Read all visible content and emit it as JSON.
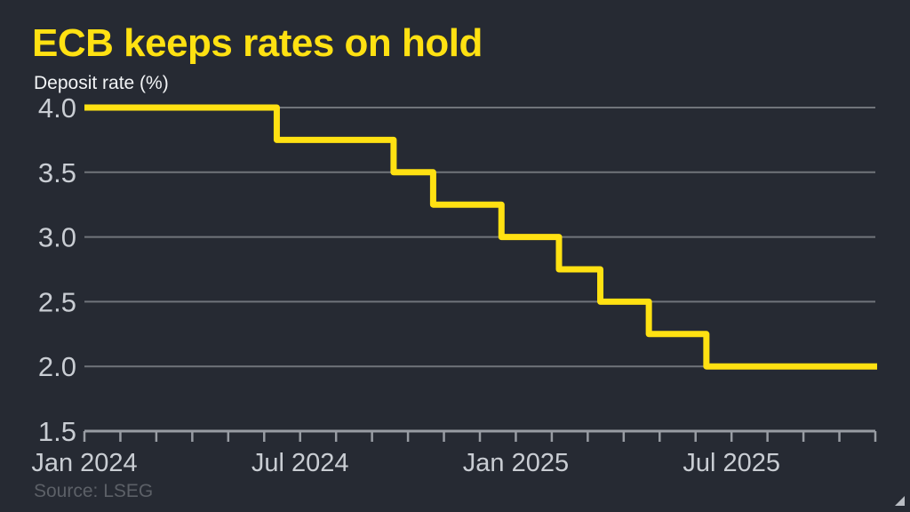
{
  "header": {
    "title": "ECB keeps rates on hold",
    "subtitle": "Deposit rate (%)"
  },
  "footer": {
    "source": "Source: LSEG"
  },
  "colors": {
    "background": "#262a33",
    "accent_yellow": "#ffe112",
    "grid": "#70747b",
    "axis": "#989ca3",
    "tick_label": "#c9cdd3",
    "subtitle_text": "#f2f4f6",
    "source_text": "#5c6067",
    "resize_handle": "#b9bdc3"
  },
  "chart_data": {
    "type": "line",
    "line_style": "step-after",
    "title": "ECB keeps rates on hold",
    "ylabel": "Deposit rate (%)",
    "legend": "none",
    "grid": "horizontal",
    "ylim": [
      1.5,
      4.0
    ],
    "y_ticks": [
      {
        "value": 4.0,
        "label": "4.0"
      },
      {
        "value": 3.5,
        "label": "3.5"
      },
      {
        "value": 3.0,
        "label": "3.0"
      },
      {
        "value": 2.5,
        "label": "2.5"
      },
      {
        "value": 2.0,
        "label": "2.0"
      },
      {
        "value": 1.5,
        "label": "1.5"
      }
    ],
    "x_axis": {
      "span_months": 22,
      "minor_tick_every_months": 1,
      "tick_labels": [
        {
          "label": "Jan 2024",
          "month": 0
        },
        {
          "label": "Jul 2024",
          "month": 6
        },
        {
          "label": "Jan 2025",
          "month": 12
        },
        {
          "label": "Jul 2025",
          "month": 18
        }
      ]
    },
    "series": [
      {
        "name": "ECB deposit rate (%)",
        "color": "#ffe112",
        "steps": [
          {
            "rate": 4.0,
            "from": "Jan 2024",
            "to": "Jun 2024",
            "from_month": 0.0,
            "to_month": 5.35
          },
          {
            "rate": 3.75,
            "from": "Jun 2024",
            "to": "Sep 2024",
            "from_month": 5.35,
            "to_month": 8.6
          },
          {
            "rate": 3.5,
            "from": "Sep 2024",
            "to": "Oct 2024",
            "from_month": 8.6,
            "to_month": 9.7
          },
          {
            "rate": 3.25,
            "from": "Oct 2024",
            "to": "Dec 2024",
            "from_month": 9.7,
            "to_month": 11.6
          },
          {
            "rate": 3.0,
            "from": "Dec 2024",
            "to": "Feb 2025",
            "from_month": 11.6,
            "to_month": 13.2
          },
          {
            "rate": 2.75,
            "from": "Feb 2025",
            "to": "Mar 2025",
            "from_month": 13.2,
            "to_month": 14.35
          },
          {
            "rate": 2.5,
            "from": "Mar 2025",
            "to": "Apr 2025",
            "from_month": 14.35,
            "to_month": 15.7
          },
          {
            "rate": 2.25,
            "from": "Apr 2025",
            "to": "Jun 2025",
            "from_month": 15.7,
            "to_month": 17.3
          },
          {
            "rate": 2.0,
            "from": "Jun 2025",
            "to": "Oct 2025",
            "from_month": 17.3,
            "to_month": 22.05
          }
        ]
      }
    ]
  }
}
